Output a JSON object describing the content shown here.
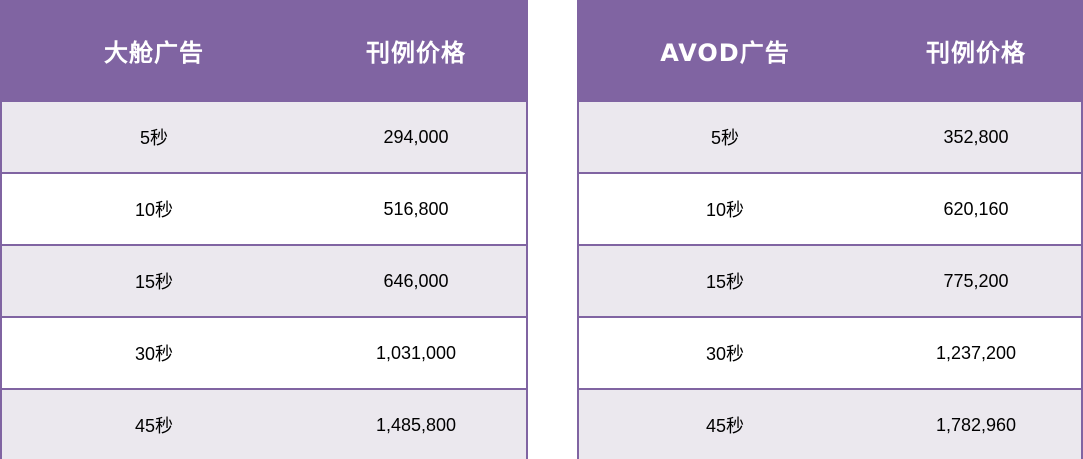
{
  "colors": {
    "header_bg": "#8064a2",
    "header_text": "#ffffff",
    "row_shaded": "#ebe8ee",
    "row_plain": "#ffffff",
    "border": "#8064a2"
  },
  "tables": [
    {
      "headers": [
        "大舱广告",
        "刊例价格"
      ],
      "rows": [
        [
          "5秒",
          "294,000"
        ],
        [
          "10秒",
          "516,800"
        ],
        [
          "15秒",
          "646,000"
        ],
        [
          "30秒",
          "1,031,000"
        ],
        [
          "45秒",
          "1,485,800"
        ]
      ]
    },
    {
      "headers": [
        "AVOD广告",
        "刊例价格"
      ],
      "rows": [
        [
          "5秒",
          "352,800"
        ],
        [
          "10秒",
          "620,160"
        ],
        [
          "15秒",
          "775,200"
        ],
        [
          "30秒",
          "1,237,200"
        ],
        [
          "45秒",
          "1,782,960"
        ]
      ]
    }
  ]
}
